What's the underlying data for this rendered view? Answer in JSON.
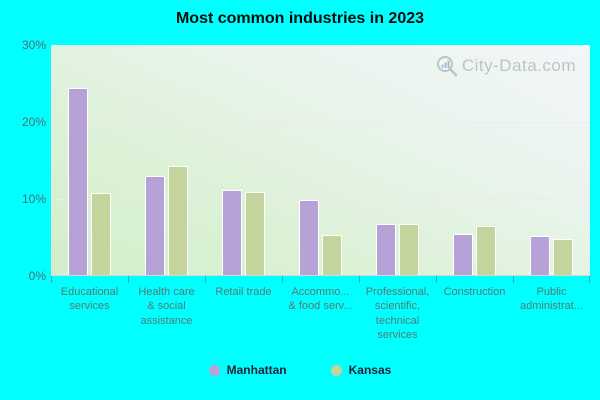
{
  "title": "Most common industries in 2023",
  "watermark": {
    "text": "City-Data.com"
  },
  "colors": {
    "background": "#00ffff",
    "manhattan": "#b7a2d8",
    "kansas": "#c3d49c",
    "plot_gradient_top": "#f2f6f7",
    "plot_gradient_bottom": "#d2eecb",
    "axis_text": "#4d6e6e"
  },
  "chart_data": {
    "type": "bar",
    "title": "Most common industries in 2023",
    "categories": [
      "Educational\nservices",
      "Health care\n& social\nassistance",
      "Retail trade",
      "Accommo...\n& food serv...",
      "Professional,\nscientific,\ntechnical\nservices",
      "Construction",
      "Public\nadministrat..."
    ],
    "series": [
      {
        "name": "Manhattan",
        "color": "#b7a2d8",
        "values": [
          24.3,
          12.8,
          11.0,
          9.8,
          6.6,
          5.3,
          5.1
        ]
      },
      {
        "name": "Kansas",
        "color": "#c3d49c",
        "values": [
          10.7,
          14.2,
          10.8,
          5.2,
          6.6,
          6.4,
          4.7
        ]
      }
    ],
    "xlabel": "",
    "ylabel": "",
    "ylim": [
      0,
      30
    ],
    "yticks": [
      {
        "value": 0,
        "label": "0%"
      },
      {
        "value": 10,
        "label": "10%"
      },
      {
        "value": 20,
        "label": "20%"
      },
      {
        "value": 30,
        "label": "30%"
      }
    ],
    "grid": "horizontal",
    "legend_position": "bottom"
  }
}
